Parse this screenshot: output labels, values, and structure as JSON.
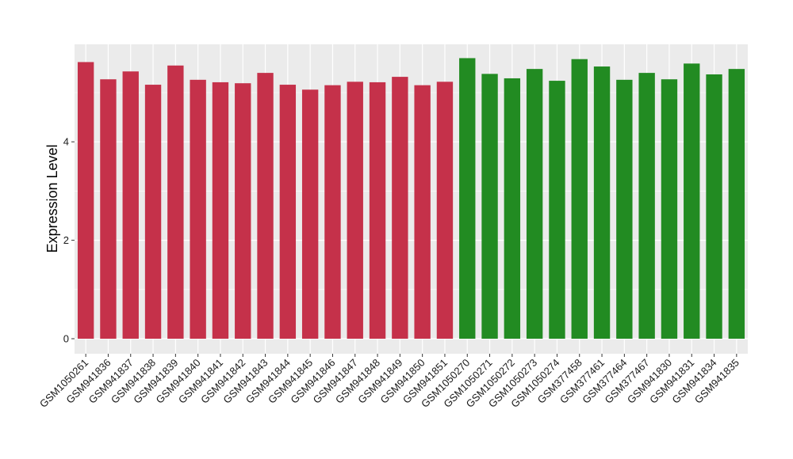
{
  "chart_data": {
    "type": "bar",
    "ylabel": "Expression Level",
    "xlabel": "",
    "title": "",
    "ylim": [
      0,
      5.95
    ],
    "yticks": [
      0,
      2,
      4
    ],
    "grid": true,
    "legend": "none",
    "colors": {
      "group_a": "#C5314A",
      "group_b": "#228B22",
      "panel_bg": "#EBEBEB",
      "grid": "#FFFFFF"
    },
    "categories": [
      "GSM1050261",
      "GSM941836",
      "GSM941837",
      "GSM941838",
      "GSM941839",
      "GSM941840",
      "GSM941841",
      "GSM941842",
      "GSM941843",
      "GSM941844",
      "GSM941845",
      "GSM941846",
      "GSM941847",
      "GSM941848",
      "GSM941849",
      "GSM941850",
      "GSM941851",
      "GSM1050270",
      "GSM1050271",
      "GSM1050272",
      "GSM1050273",
      "GSM1050274",
      "GSM377458",
      "GSM377461",
      "GSM377464",
      "GSM377467",
      "GSM941830",
      "GSM941831",
      "GSM941834",
      "GSM941835"
    ],
    "values": [
      5.62,
      5.27,
      5.43,
      5.16,
      5.55,
      5.26,
      5.21,
      5.19,
      5.4,
      5.16,
      5.06,
      5.15,
      5.22,
      5.21,
      5.32,
      5.15,
      5.22,
      5.7,
      5.38,
      5.29,
      5.48,
      5.24,
      5.68,
      5.53,
      5.26,
      5.4,
      5.27,
      5.59,
      5.37,
      5.48
    ],
    "groups": [
      "a",
      "a",
      "a",
      "a",
      "a",
      "a",
      "a",
      "a",
      "a",
      "a",
      "a",
      "a",
      "a",
      "a",
      "a",
      "a",
      "a",
      "b",
      "b",
      "b",
      "b",
      "b",
      "b",
      "b",
      "b",
      "b",
      "b",
      "b",
      "b",
      "b"
    ]
  }
}
